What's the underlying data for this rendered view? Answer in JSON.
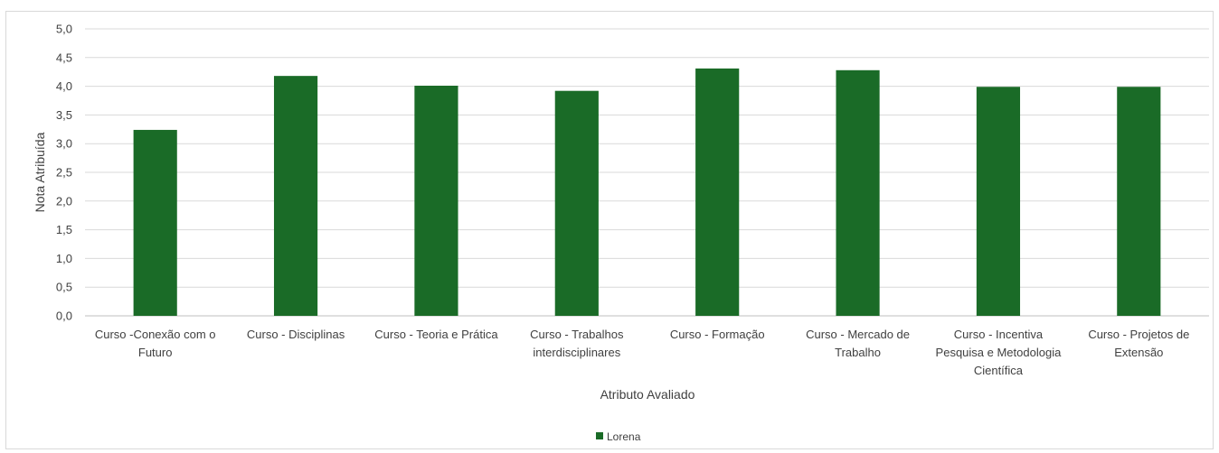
{
  "chart_data": {
    "type": "bar",
    "title": "",
    "xlabel": "Atributo Avaliado",
    "ylabel": "Nota Atribuída",
    "ylim": [
      0,
      5
    ],
    "yticks": [
      "0,0",
      "0,5",
      "1,0",
      "1,5",
      "2,0",
      "2,5",
      "3,0",
      "3,5",
      "4,0",
      "4,5",
      "5,0"
    ],
    "grid": true,
    "legend_position": "bottom",
    "categories": [
      [
        "Curso -Conexão com o",
        "Futuro"
      ],
      [
        "Curso - Disciplinas"
      ],
      [
        "Curso - Teoria e Prática"
      ],
      [
        "Curso - Trabalhos",
        "interdisciplinares"
      ],
      [
        "Curso - Formação"
      ],
      [
        "Curso - Mercado de",
        "Trabalho"
      ],
      [
        "Curso - Incentiva",
        "Pesquisa e Metodologia",
        "Científica"
      ],
      [
        "Curso - Projetos de",
        "Extensão"
      ]
    ],
    "series": [
      {
        "name": "Lorena",
        "color": "#1a6b27",
        "values": [
          3.24,
          4.18,
          4.01,
          3.92,
          4.31,
          4.28,
          3.99,
          3.99
        ]
      }
    ]
  }
}
